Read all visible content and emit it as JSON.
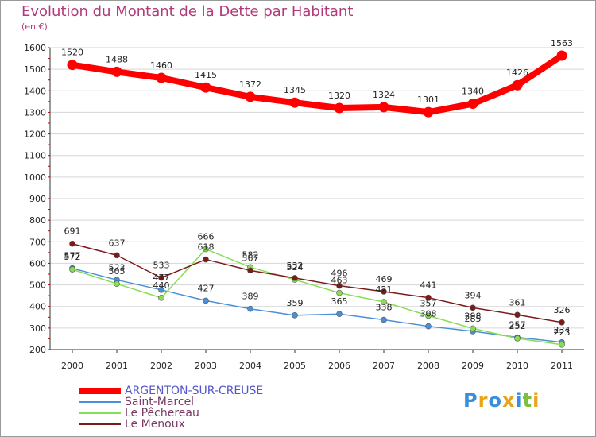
{
  "title": "Evolution du Montant de la Dette par Habitant",
  "unit": "(en €)",
  "logo": {
    "text": "Proxiti",
    "letters": [
      "P",
      "r",
      "o",
      "x",
      "i",
      "t",
      "i"
    ],
    "colors": [
      "#3b8ed8",
      "#e8a51a",
      "#3b8ed8",
      "#e8a51a",
      "#3b8ed8",
      "#7fbf3f",
      "#e8a51a"
    ]
  },
  "chart_data": {
    "type": "line",
    "title": "Evolution du Montant de la Dette par Habitant",
    "ylabel": "(en €)",
    "xlabel": "",
    "ylim": [
      200,
      1600
    ],
    "yticks": [
      200,
      300,
      400,
      500,
      600,
      700,
      800,
      900,
      1000,
      1100,
      1200,
      1300,
      1400,
      1500,
      1600
    ],
    "categories": [
      "2000",
      "2001",
      "2002",
      "2003",
      "2004",
      "2005",
      "2006",
      "2007",
      "2008",
      "2009",
      "2010",
      "2011"
    ],
    "grid": true,
    "legend": "bottom-left",
    "series": [
      {
        "name": "ARGENTON-SUR-CREUSE",
        "color": "#ff0000",
        "values": [
          1520,
          1488,
          1460,
          1415,
          1372,
          1345,
          1320,
          1324,
          1301,
          1340,
          1426,
          1563
        ]
      },
      {
        "name": "Saint-Marcel",
        "color": "#4a90d9",
        "values": [
          577,
          523,
          477,
          427,
          389,
          359,
          365,
          338,
          308,
          285,
          257,
          234
        ]
      },
      {
        "name": "Le Pêchereau",
        "color": "#88dd55",
        "values": [
          572,
          505,
          440,
          666,
          582,
          524,
          463,
          421,
          357,
          298,
          252,
          223
        ]
      },
      {
        "name": "Le Menoux",
        "color": "#7a1a1a",
        "values": [
          691,
          637,
          533,
          618,
          567,
          532,
          496,
          469,
          441,
          394,
          361,
          326
        ]
      }
    ]
  }
}
